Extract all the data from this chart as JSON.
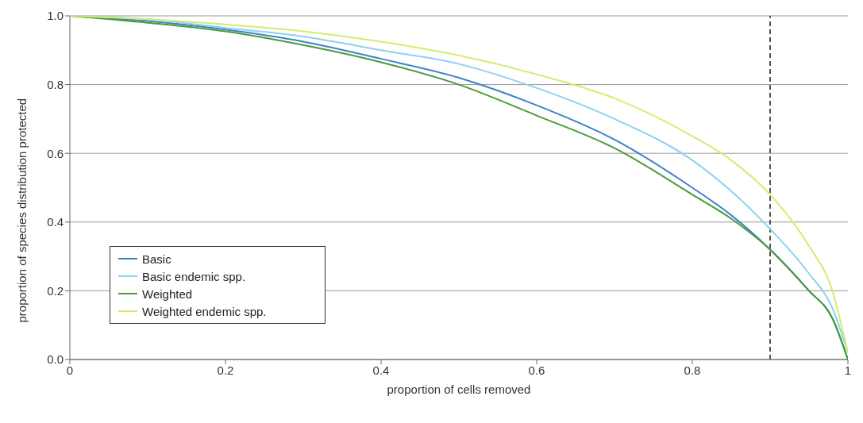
{
  "chart_data": {
    "type": "line",
    "xlabel": "proportion of cells removed",
    "ylabel": "proportion of species distribution protected",
    "x": [
      0,
      0.1,
      0.2,
      0.3,
      0.4,
      0.5,
      0.6,
      0.7,
      0.8,
      0.85,
      0.9,
      0.95,
      0.98,
      1
    ],
    "series": [
      {
        "name": "Basic",
        "color": "#3b83c8",
        "values": [
          1,
          0.985,
          0.96,
          0.925,
          0.875,
          0.82,
          0.74,
          0.64,
          0.5,
          0.42,
          0.32,
          0.2,
          0.12,
          0
        ]
      },
      {
        "name": "Basic endemic spp.",
        "color": "#8fd0f0",
        "values": [
          1,
          0.99,
          0.965,
          0.94,
          0.9,
          0.86,
          0.79,
          0.7,
          0.58,
          0.49,
          0.38,
          0.25,
          0.15,
          0.02
        ]
      },
      {
        "name": "Weighted",
        "color": "#4a9a3a",
        "values": [
          1,
          0.98,
          0.955,
          0.915,
          0.865,
          0.8,
          0.71,
          0.615,
          0.48,
          0.41,
          0.32,
          0.2,
          0.12,
          0
        ]
      },
      {
        "name": "Weighted endemic spp.",
        "color": "#d4ec70",
        "values": [
          1,
          0.99,
          0.975,
          0.955,
          0.925,
          0.885,
          0.83,
          0.76,
          0.65,
          0.58,
          0.48,
          0.33,
          0.2,
          0.02
        ]
      }
    ],
    "xlim": [
      0,
      1
    ],
    "xticks": [
      0,
      0.2,
      0.4,
      0.6,
      0.8,
      1
    ],
    "ylim": [
      0,
      1
    ],
    "yticks": [
      {
        "value": 0,
        "label": "0.0"
      },
      {
        "value": 0.2,
        "label": "0.2"
      },
      {
        "value": 0.4,
        "label": "0.4"
      },
      {
        "value": 0.6,
        "label": "0.6"
      },
      {
        "value": 0.8,
        "label": "0.8"
      },
      {
        "value": 1,
        "label": "1.0"
      }
    ],
    "ref_lines": [
      {
        "axis": "x",
        "value": 0.9,
        "color": "#555555",
        "line_style": "dashed"
      }
    ],
    "grid": "y",
    "legend": "bottom left",
    "marker": "none",
    "line_style": "solid"
  }
}
